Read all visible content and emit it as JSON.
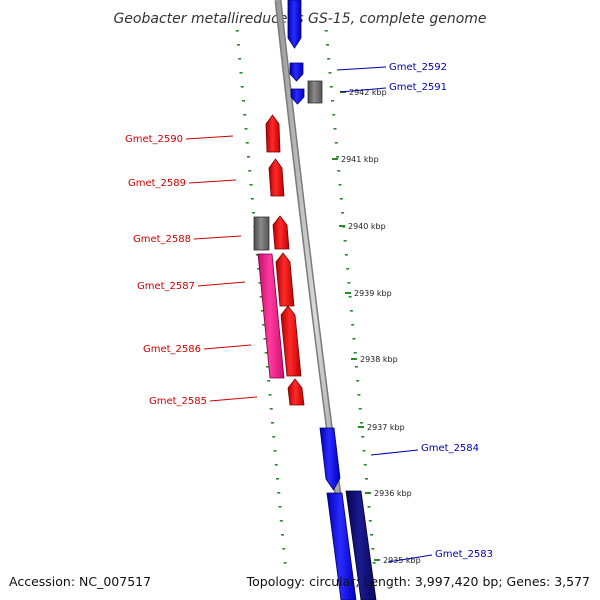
{
  "title": "Geobacter metallireducens GS-15, complete genome",
  "footer": {
    "accession": "Accession: NC_007517",
    "topology": "Topology: circular; Length: 3,997,420 bp; Genes: 3,577"
  },
  "colors": {
    "forward_gene": "#ff0000",
    "reverse_gene": "#0000ff",
    "reverse_gene_dark": "#0b0b7a",
    "other_feature": "#6b6b6b",
    "rna_feature": "#ff1a8c",
    "tick": "#2a8a2a",
    "backbone": "#888888",
    "forward_label": "#cc0000",
    "reverse_label": "#0000aa"
  },
  "ticks": [
    {
      "label": "2942 kbp"
    },
    {
      "label": "2941 kbp"
    },
    {
      "label": "2940 kbp"
    },
    {
      "label": "2939 kbp"
    },
    {
      "label": "2938 kbp"
    },
    {
      "label": "2937 kbp"
    },
    {
      "label": "2936 kbp"
    },
    {
      "label": "2935 kbp"
    }
  ],
  "genes": [
    {
      "name": "Gmet_2592",
      "strand": "reverse"
    },
    {
      "name": "Gmet_2591",
      "strand": "reverse"
    },
    {
      "name": "Gmet_2590",
      "strand": "forward"
    },
    {
      "name": "Gmet_2589",
      "strand": "forward"
    },
    {
      "name": "Gmet_2588",
      "strand": "forward"
    },
    {
      "name": "Gmet_2587",
      "strand": "forward"
    },
    {
      "name": "Gmet_2586",
      "strand": "forward"
    },
    {
      "name": "Gmet_2585",
      "strand": "forward"
    },
    {
      "name": "Gmet_2584",
      "strand": "reverse"
    },
    {
      "name": "Gmet_2583",
      "strand": "reverse"
    }
  ]
}
